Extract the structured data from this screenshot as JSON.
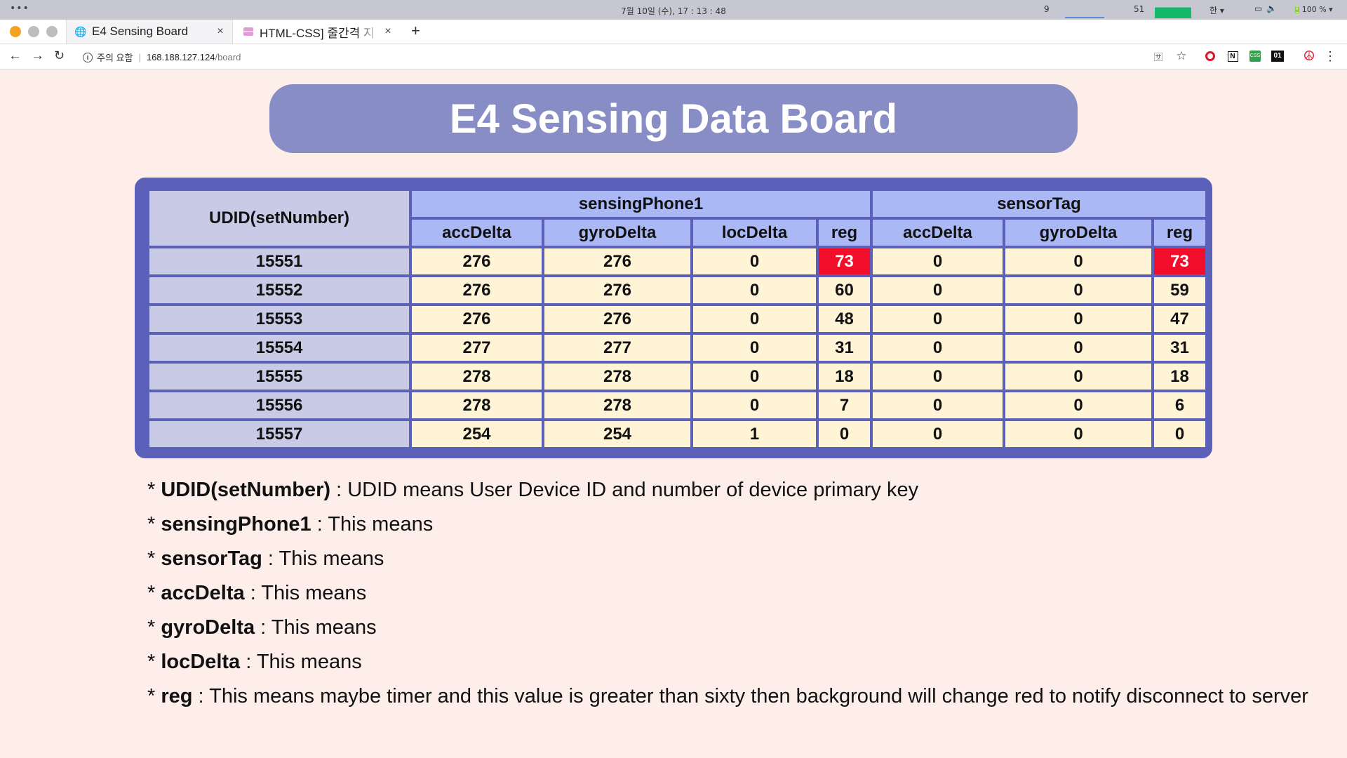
{
  "os": {
    "clock": "7월 10일 (수), 17 : 13 : 48",
    "cpu_value": "9",
    "mem_value": "51",
    "lang": "한",
    "battery": "100 %"
  },
  "browser": {
    "tabs": [
      {
        "title": "E4 Sensing Board",
        "active": true
      },
      {
        "title": "HTML-CSS] 줄간격 지",
        "active": false
      }
    ],
    "security_label": "주의 요함",
    "url_host": "168.188.127.124",
    "url_path": "/board"
  },
  "page": {
    "title": "E4 Sensing Data Board"
  },
  "table": {
    "udid_header": "UDID(setNumber)",
    "groups": [
      "sensingPhone1",
      "sensorTag"
    ],
    "columns": [
      "accDelta",
      "gyroDelta",
      "locDelta",
      "reg",
      "accDelta",
      "gyroDelta",
      "reg"
    ],
    "alert_color": "#f20d2a",
    "rows": [
      {
        "udid": "15551",
        "values": [
          "276",
          "276",
          "0",
          "73",
          "0",
          "0",
          "73"
        ],
        "alerts": [
          false,
          false,
          false,
          true,
          false,
          false,
          true
        ]
      },
      {
        "udid": "15552",
        "values": [
          "276",
          "276",
          "0",
          "60",
          "0",
          "0",
          "59"
        ],
        "alerts": [
          false,
          false,
          false,
          false,
          false,
          false,
          false
        ]
      },
      {
        "udid": "15553",
        "values": [
          "276",
          "276",
          "0",
          "48",
          "0",
          "0",
          "47"
        ],
        "alerts": [
          false,
          false,
          false,
          false,
          false,
          false,
          false
        ]
      },
      {
        "udid": "15554",
        "values": [
          "277",
          "277",
          "0",
          "31",
          "0",
          "0",
          "31"
        ],
        "alerts": [
          false,
          false,
          false,
          false,
          false,
          false,
          false
        ]
      },
      {
        "udid": "15555",
        "values": [
          "278",
          "278",
          "0",
          "18",
          "0",
          "0",
          "18"
        ],
        "alerts": [
          false,
          false,
          false,
          false,
          false,
          false,
          false
        ]
      },
      {
        "udid": "15556",
        "values": [
          "278",
          "278",
          "0",
          "7",
          "0",
          "0",
          "6"
        ],
        "alerts": [
          false,
          false,
          false,
          false,
          false,
          false,
          false
        ]
      },
      {
        "udid": "15557",
        "values": [
          "254",
          "254",
          "1",
          "0",
          "0",
          "0",
          "0"
        ],
        "alerts": [
          false,
          false,
          false,
          false,
          false,
          false,
          false
        ]
      }
    ]
  },
  "notes": [
    {
      "term": "UDID(setNumber)",
      "text": " : UDID means User Device ID and number of device primary key"
    },
    {
      "term": "sensingPhone1",
      "text": " : This means"
    },
    {
      "term": "sensorTag",
      "text": " : This means"
    },
    {
      "term": "accDelta",
      "text": " : This means"
    },
    {
      "term": "gyroDelta",
      "text": " : This means"
    },
    {
      "term": "locDelta",
      "text": " : This means"
    },
    {
      "term": "reg",
      "text": " : This means maybe timer and this value is greater than sixty then background will change red to notify disconnect to server"
    }
  ]
}
